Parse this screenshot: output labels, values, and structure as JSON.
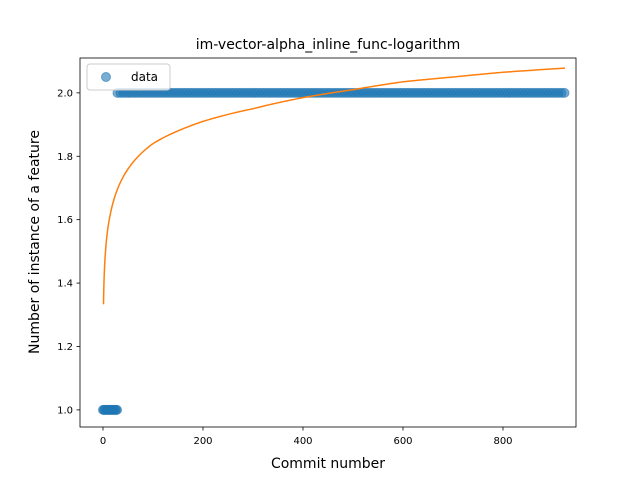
{
  "chart_data": {
    "type": "scatter",
    "title": "im-vector-alpha_inline_func-logarithm",
    "xlabel": "Commit number",
    "ylabel": "Number of instance of a feature",
    "xlim": [
      -46,
      946
    ],
    "ylim": [
      0.946,
      2.11
    ],
    "xticks": [
      0,
      200,
      400,
      600,
      800
    ],
    "yticks": [
      1.0,
      1.2,
      1.4,
      1.6,
      1.8,
      2.0
    ],
    "ytick_labels": [
      "1.0",
      "1.2",
      "1.4",
      "1.6",
      "1.8",
      "2.0"
    ],
    "legend": {
      "position": "upper-left",
      "entries": [
        "data"
      ]
    },
    "colors": {
      "data": "#1f77b4",
      "fit": "#ff7f0e"
    },
    "series": [
      {
        "name": "data",
        "kind": "scatter",
        "segments": [
          {
            "x_from": 0,
            "x_to": 28,
            "step": 2,
            "y": 1.0
          },
          {
            "x_from": 29,
            "x_to": 924,
            "step": 6,
            "y": 2.0
          }
        ]
      },
      {
        "kind": "line",
        "x_from": 1,
        "x_to": 924,
        "y_at": {
          "1": 1.333,
          "5": 1.5,
          "15": 1.62,
          "50": 1.76,
          "100": 1.84,
          "150": 1.88,
          "200": 1.91,
          "300": 1.95,
          "400": 1.985,
          "500": 2.01,
          "600": 2.035,
          "700": 2.05,
          "800": 2.065,
          "924": 2.078
        }
      }
    ]
  }
}
